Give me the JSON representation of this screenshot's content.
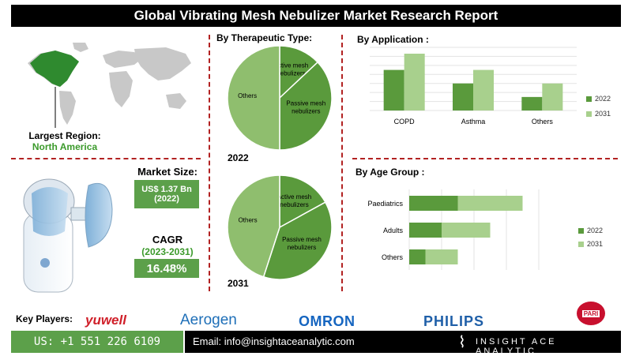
{
  "title": "Global Vibrating Mesh Nebulizer Market Research Report",
  "largest_region": {
    "label": "Largest Region:",
    "value": "North America"
  },
  "market_size": {
    "label": "Market Size:",
    "value": "US$ 1.37 Bn",
    "year": "(2022)"
  },
  "cagr": {
    "label": "CAGR",
    "period": "(2023-2031)",
    "value": "16.48%"
  },
  "key_players": {
    "label": "Key Players:",
    "players": [
      "yuwell",
      "Aerogen",
      "OMRON",
      "PHILIPS",
      "PARI"
    ]
  },
  "footer": {
    "phone": "US: +1 551 226 6109",
    "email": "Email: info@insightaceanalytic.com",
    "brand": "INSIGHT ACE ANALYTIC"
  },
  "colors": {
    "dark_green": "#5a9a3c",
    "light_green": "#a8d08d",
    "pie_light": "#8fbe6e",
    "accent_red": "#b22222"
  },
  "chart_data": [
    {
      "type": "pie",
      "title": "By Therapeutic Type:",
      "year_label": "2022",
      "slices": [
        {
          "label": "Active mesh nebulizers",
          "value": 13
        },
        {
          "label": "Passive mesh nebulizers",
          "value": 37
        },
        {
          "label": "Others",
          "value": 50
        }
      ]
    },
    {
      "type": "pie",
      "year_label": "2031",
      "slices": [
        {
          "label": "Active mesh nebulizers",
          "value": 17
        },
        {
          "label": "Passive mesh nebulizers",
          "value": 38
        },
        {
          "label": "Others",
          "value": 45
        }
      ]
    },
    {
      "type": "bar",
      "title": "By Application :",
      "categories": [
        "COPD",
        "Asthma",
        "Others"
      ],
      "series": [
        {
          "name": "2022",
          "values": [
            4.5,
            3.0,
            1.5
          ]
        },
        {
          "name": "2031",
          "values": [
            6.3,
            4.5,
            3.0
          ]
        }
      ],
      "ylim": [
        0,
        7
      ],
      "grid": true,
      "legend": "right"
    },
    {
      "type": "bar",
      "orientation": "horizontal",
      "stacked": true,
      "title": "By Age Group :",
      "categories": [
        "Paediatrics",
        "Adults",
        "Others"
      ],
      "series": [
        {
          "name": "2022",
          "values": [
            3,
            2,
            1
          ]
        },
        {
          "name": "2031",
          "values": [
            4,
            3,
            2
          ]
        }
      ],
      "xlim": [
        0,
        8
      ],
      "grid": true,
      "legend": "right"
    }
  ]
}
